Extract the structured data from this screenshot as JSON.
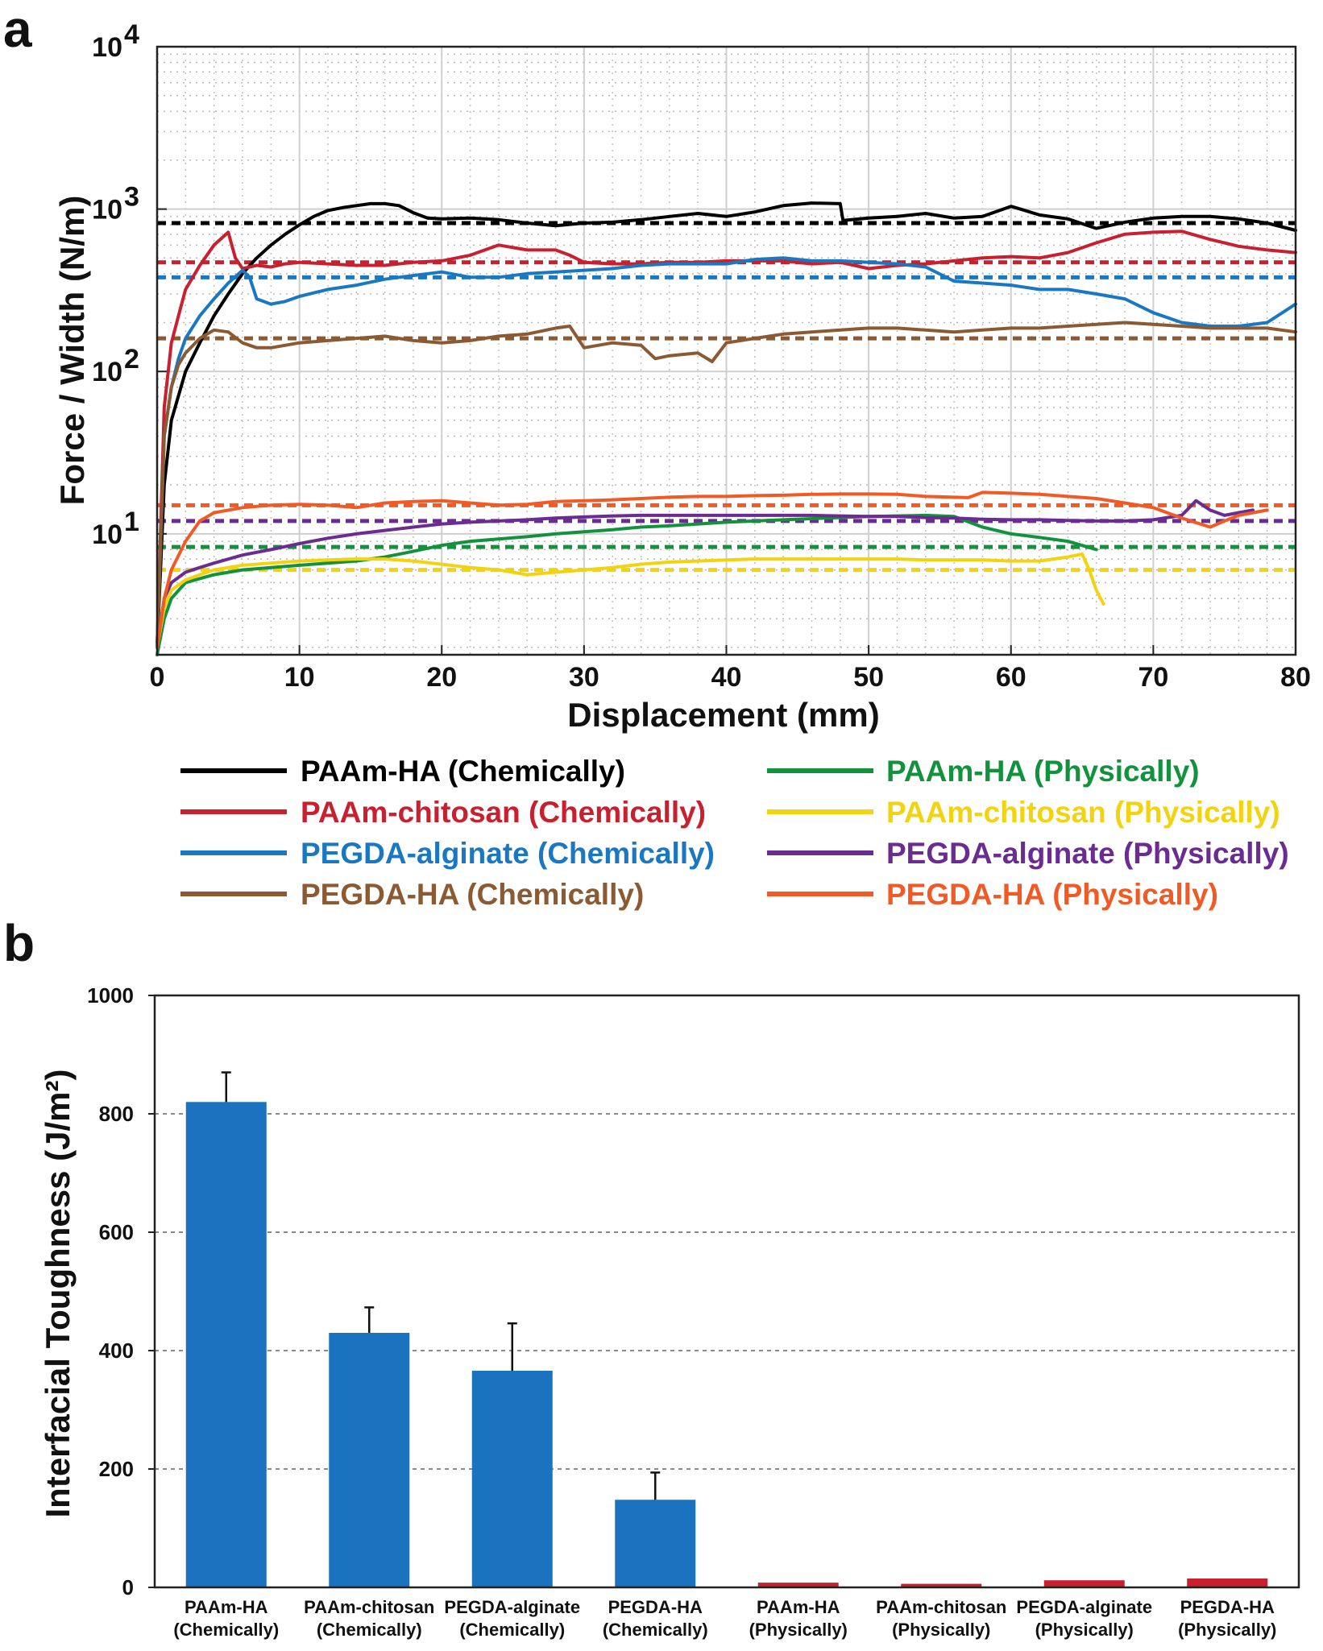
{
  "panel_a": {
    "letter": "a",
    "xlabel": "Displacement (mm)",
    "ylabel": "Force / Width (N/m)",
    "x_ticks": [
      "0",
      "10",
      "20",
      "30",
      "40",
      "50",
      "60",
      "70",
      "80"
    ],
    "y_ticks": [
      {
        "base": "10",
        "exp": "1",
        "value": 10
      },
      {
        "base": "10",
        "exp": "2",
        "value": 100
      },
      {
        "base": "10",
        "exp": "3",
        "value": 1000
      },
      {
        "base": "10",
        "exp": "4",
        "value": 10000
      }
    ],
    "legend_left": [
      {
        "label": "PAAm-HA (Chemically)",
        "color": "#000000"
      },
      {
        "label": "PAAm-chitosan (Chemically)",
        "color": "#c8202f"
      },
      {
        "label": "PEGDA-alginate (Chemically)",
        "color": "#1a78c2"
      },
      {
        "label": "PEGDA-HA (Chemically)",
        "color": "#8b5a32"
      }
    ],
    "legend_right": [
      {
        "label": "PAAm-HA (Physically)",
        "color": "#13923d"
      },
      {
        "label": "PAAm-chitosan (Physically)",
        "color": "#f2d30f"
      },
      {
        "label": "PEGDA-alginate (Physically)",
        "color": "#6b2c91"
      },
      {
        "label": "PEGDA-HA (Physically)",
        "color": "#f15a24"
      }
    ]
  },
  "panel_b": {
    "letter": "b",
    "ylabel": "Interfacial Toughness (J/m²)",
    "y_ticks": [
      "0",
      "200",
      "400",
      "600",
      "800",
      "1000"
    ],
    "categories": [
      {
        "line1": "PAAm-HA",
        "line2": "(Chemically)"
      },
      {
        "line1": "PAAm-chitosan",
        "line2": "(Chemically)"
      },
      {
        "line1": "PEGDA-alginate",
        "line2": "(Chemically)"
      },
      {
        "line1": "PEGDA-HA",
        "line2": "(Chemically)"
      },
      {
        "line1": "PAAm-HA",
        "line2": "(Physically)"
      },
      {
        "line1": "PAAm-chitosan",
        "line2": "(Physically)"
      },
      {
        "line1": "PEGDA-alginate",
        "line2": "(Physically)"
      },
      {
        "line1": "PEGDA-HA",
        "line2": "(Physically)"
      }
    ]
  },
  "chart_data": [
    {
      "type": "line",
      "yscale": "log",
      "xlabel": "Displacement (mm)",
      "ylabel": "Force / Width (N/m)",
      "xlim": [
        0,
        80
      ],
      "ylim": [
        1.8,
        10000
      ],
      "grid": true,
      "legend_position": "below",
      "series": [
        {
          "name": "PAAm-HA (Chemically)",
          "color": "#000000",
          "mean": 820,
          "x": [
            0,
            0.5,
            1,
            2,
            3,
            4,
            5,
            6,
            7,
            8,
            9,
            10,
            11,
            12,
            13,
            14,
            15,
            16,
            17,
            18,
            19,
            20,
            22,
            24,
            26,
            28,
            30,
            32,
            34,
            36,
            38,
            40,
            42,
            44,
            46,
            48,
            48.2,
            50,
            52,
            54,
            56,
            58,
            60,
            61,
            62,
            64,
            66,
            68,
            70,
            72,
            74,
            76,
            78,
            80
          ],
          "y": [
            2,
            20,
            50,
            100,
            150,
            220,
            300,
            400,
            500,
            600,
            700,
            800,
            900,
            980,
            1020,
            1050,
            1080,
            1080,
            1050,
            950,
            880,
            870,
            880,
            860,
            820,
            790,
            820,
            830,
            860,
            900,
            940,
            900,
            960,
            1050,
            1090,
            1080,
            850,
            880,
            900,
            940,
            880,
            900,
            1040,
            980,
            920,
            870,
            760,
            830,
            880,
            900,
            900,
            870,
            820,
            740
          ]
        },
        {
          "name": "PAAm-chitosan (Chemically)",
          "color": "#c8202f",
          "mean": 470,
          "x": [
            0,
            0.5,
            1,
            1.5,
            2,
            3,
            4,
            5,
            5.5,
            6,
            7,
            8,
            9,
            10,
            12,
            14,
            16,
            18,
            20,
            22,
            24,
            26,
            28,
            29,
            30,
            32,
            34,
            36,
            38,
            40,
            42,
            44,
            46,
            48,
            50,
            52,
            54,
            56,
            58,
            60,
            62,
            64,
            66,
            68,
            70,
            72,
            74,
            76,
            78,
            80
          ],
          "y": [
            2,
            60,
            150,
            220,
            320,
            450,
            600,
            720,
            500,
            430,
            450,
            440,
            460,
            470,
            460,
            450,
            450,
            470,
            480,
            520,
            600,
            560,
            560,
            520,
            470,
            460,
            460,
            470,
            470,
            480,
            480,
            480,
            460,
            470,
            430,
            450,
            460,
            480,
            500,
            510,
            500,
            540,
            620,
            700,
            720,
            730,
            650,
            590,
            560,
            540
          ]
        },
        {
          "name": "PEGDA-alginate (Chemically)",
          "color": "#1a78c2",
          "mean": 380,
          "x": [
            0,
            0.5,
            1,
            1.5,
            2,
            3,
            4,
            5,
            6,
            6.5,
            7,
            8,
            9,
            10,
            12,
            14,
            16,
            18,
            20,
            22,
            24,
            26,
            28,
            30,
            32,
            34,
            36,
            38,
            40,
            42,
            44,
            46,
            48,
            50,
            52,
            54,
            56,
            58,
            60,
            62,
            64,
            66,
            68,
            70,
            72,
            74,
            76,
            78,
            80
          ],
          "y": [
            2,
            40,
            80,
            120,
            160,
            220,
            280,
            350,
            420,
            380,
            280,
            260,
            270,
            290,
            320,
            340,
            370,
            390,
            410,
            380,
            380,
            400,
            410,
            420,
            430,
            450,
            460,
            460,
            460,
            490,
            500,
            480,
            480,
            470,
            460,
            440,
            360,
            350,
            340,
            320,
            320,
            300,
            280,
            230,
            200,
            190,
            190,
            200,
            260
          ]
        },
        {
          "name": "PEGDA-HA (Chemically)",
          "color": "#8b5a32",
          "mean": 160,
          "x": [
            0,
            0.5,
            1,
            1.5,
            2,
            3,
            4,
            5,
            6,
            7,
            8,
            10,
            12,
            14,
            16,
            18,
            20,
            22,
            24,
            26,
            28,
            29,
            30,
            32,
            34,
            35,
            36,
            38,
            39,
            40,
            42,
            44,
            46,
            48,
            50,
            52,
            54,
            56,
            58,
            60,
            62,
            64,
            66,
            68,
            70,
            72,
            74,
            76,
            78,
            80
          ],
          "y": [
            2,
            40,
            80,
            110,
            130,
            160,
            180,
            175,
            150,
            140,
            140,
            150,
            155,
            160,
            165,
            155,
            150,
            155,
            165,
            170,
            185,
            190,
            140,
            150,
            145,
            120,
            125,
            130,
            115,
            150,
            160,
            170,
            175,
            180,
            185,
            185,
            180,
            175,
            180,
            185,
            185,
            190,
            195,
            200,
            195,
            190,
            185,
            185,
            185,
            175
          ]
        },
        {
          "name": "PAAm-HA (Physically)",
          "color": "#13923d",
          "mean": 8.3,
          "x": [
            0,
            0.5,
            1,
            2,
            3,
            4,
            6,
            8,
            10,
            12,
            14,
            16,
            18,
            20,
            22,
            24,
            26,
            28,
            30,
            32,
            34,
            36,
            38,
            40,
            42,
            44,
            46,
            48,
            50,
            52,
            54,
            56,
            58,
            60,
            62,
            64,
            66
          ],
          "y": [
            1.8,
            3,
            4,
            5,
            5.3,
            5.6,
            6,
            6.2,
            6.4,
            6.6,
            6.8,
            7.2,
            7.8,
            8.5,
            9,
            9.3,
            9.6,
            10,
            10.3,
            10.6,
            11,
            11.2,
            11.5,
            11.8,
            12,
            12.2,
            12.4,
            12.6,
            12.8,
            12.9,
            13,
            12.8,
            11,
            10,
            9.5,
            9,
            8
          ]
        },
        {
          "name": "PAAm-chitosan (Physically)",
          "color": "#f2d30f",
          "mean": 6.0,
          "x": [
            0,
            0.5,
            1,
            2,
            3,
            4,
            6,
            8,
            10,
            12,
            14,
            16,
            18,
            20,
            22,
            24,
            26,
            28,
            30,
            32,
            34,
            36,
            38,
            40,
            42,
            44,
            46,
            48,
            50,
            52,
            54,
            56,
            58,
            60,
            62,
            64,
            65,
            65.5,
            66,
            66.5
          ],
          "y": [
            2,
            3.5,
            4.5,
            5.2,
            5.6,
            6,
            6.4,
            6.6,
            6.8,
            6.9,
            7,
            7,
            6.8,
            6.5,
            6.2,
            6,
            5.6,
            5.8,
            6,
            6.2,
            6.5,
            6.7,
            6.8,
            6.9,
            7,
            7,
            7,
            7,
            7,
            7,
            6.9,
            6.9,
            6.9,
            6.8,
            6.8,
            7.2,
            7.5,
            6,
            4.5,
            3.7
          ]
        },
        {
          "name": "PEGDA-alginate (Physically)",
          "color": "#6b2c91",
          "mean": 12,
          "x": [
            0,
            0.5,
            1,
            2,
            3,
            4,
            6,
            8,
            10,
            12,
            14,
            16,
            18,
            20,
            22,
            24,
            26,
            28,
            30,
            32,
            34,
            36,
            38,
            40,
            42,
            44,
            46,
            48,
            50,
            52,
            54,
            56,
            58,
            60,
            62,
            64,
            66,
            68,
            70,
            72,
            73,
            74,
            75,
            76,
            77
          ],
          "y": [
            2,
            4,
            5,
            5.8,
            6.2,
            6.6,
            7.4,
            8,
            8.7,
            9.4,
            10,
            10.5,
            11,
            11.5,
            11.8,
            12,
            12.2,
            12.5,
            12.7,
            12.9,
            13,
            13,
            13,
            13,
            13,
            13,
            13,
            12.9,
            12.8,
            12.8,
            12.6,
            12.5,
            12.3,
            12.2,
            12.2,
            12.1,
            12,
            12,
            12.2,
            13,
            16,
            14,
            13,
            13.5,
            14
          ]
        },
        {
          "name": "PEGDA-HA (Physically)",
          "color": "#f15a24",
          "mean": 15,
          "x": [
            0,
            0.5,
            1,
            2,
            3,
            4,
            6,
            8,
            10,
            12,
            14,
            16,
            18,
            20,
            22,
            24,
            26,
            28,
            30,
            32,
            34,
            36,
            38,
            40,
            42,
            44,
            46,
            48,
            50,
            52,
            54,
            56,
            57,
            58,
            60,
            62,
            64,
            66,
            68,
            70,
            72,
            74,
            75,
            76,
            77,
            78
          ],
          "y": [
            2,
            4,
            6,
            9,
            12,
            13.5,
            14.5,
            15,
            15.2,
            15,
            14.5,
            15.5,
            15.8,
            16,
            15.5,
            15,
            15.2,
            15.8,
            16,
            16.2,
            16.5,
            16.8,
            17,
            17,
            17.2,
            17.3,
            17.5,
            17.6,
            17.6,
            17.5,
            17,
            16.8,
            16.7,
            18,
            17.8,
            17.5,
            17,
            16.5,
            15.5,
            14.5,
            12.5,
            11,
            12,
            13,
            13.5,
            14
          ]
        }
      ]
    },
    {
      "type": "bar",
      "ylabel": "Interfacial Toughness (J/m²)",
      "ylim": [
        0,
        1000
      ],
      "grid": true,
      "categories": [
        "PAAm-HA (Chemically)",
        "PAAm-chitosan (Chemically)",
        "PEGDA-alginate (Chemically)",
        "PEGDA-HA (Chemically)",
        "PAAm-HA (Physically)",
        "PAAm-chitosan (Physically)",
        "PEGDA-alginate (Physically)",
        "PEGDA-HA (Physically)"
      ],
      "values": [
        820,
        430,
        366,
        148,
        8,
        6,
        12,
        15
      ],
      "errors": [
        50,
        43,
        80,
        46,
        0,
        0,
        0,
        0
      ],
      "colors": [
        "#1b72bf",
        "#1b72bf",
        "#1b72bf",
        "#1b72bf",
        "#c8202f",
        "#c8202f",
        "#c8202f",
        "#c8202f"
      ]
    }
  ]
}
